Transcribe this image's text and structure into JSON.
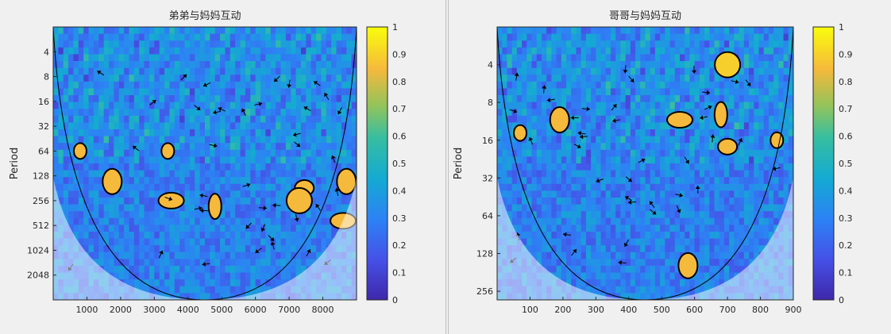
{
  "chart_data": [
    {
      "type": "heatmap",
      "title": "弟弟与妈妈互动",
      "ylabel": "Period",
      "xlabel": "",
      "xlim": [
        0,
        9000
      ],
      "x_ticks": [
        1000,
        2000,
        3000,
        4000,
        5000,
        6000,
        7000,
        8000
      ],
      "y_scale": "log2",
      "ylim": [
        2,
        4096
      ],
      "y_ticks": [
        4,
        8,
        16,
        32,
        64,
        128,
        256,
        512,
        1024,
        2048
      ],
      "colorbar": {
        "range": [
          0,
          1
        ],
        "ticks": [
          0,
          0.1,
          0.2,
          0.3,
          0.4,
          0.5,
          0.6,
          0.7,
          0.8,
          0.9,
          1
        ]
      },
      "cone_of_influence": true,
      "significant_regions": [
        {
          "x": 800,
          "period": 64,
          "value": 0.85
        },
        {
          "x": 1750,
          "period": 150,
          "value": 0.85
        },
        {
          "x": 3500,
          "period": 256,
          "value": 0.85
        },
        {
          "x": 4800,
          "period": 300,
          "value": 0.85
        },
        {
          "x": 7450,
          "period": 180,
          "value": 0.85
        },
        {
          "x": 7300,
          "period": 256,
          "value": 0.85
        },
        {
          "x": 3400,
          "period": 64,
          "value": 0.85
        },
        {
          "x": 8700,
          "period": 150,
          "value": 0.85
        },
        {
          "x": 8600,
          "period": 450,
          "value": 0.85
        }
      ]
    },
    {
      "type": "heatmap",
      "title": "哥哥与妈妈互动",
      "ylabel": "Period",
      "xlabel": "",
      "xlim": [
        0,
        900
      ],
      "x_ticks": [
        100,
        200,
        300,
        400,
        500,
        600,
        700,
        800,
        900
      ],
      "y_scale": "log2",
      "ylim": [
        2,
        300
      ],
      "y_ticks": [
        4,
        8,
        16,
        32,
        64,
        128,
        256
      ],
      "colorbar": {
        "range": [
          0,
          1
        ],
        "ticks": [
          0,
          0.1,
          0.2,
          0.3,
          0.4,
          0.5,
          0.6,
          0.7,
          0.8,
          0.9,
          1
        ]
      },
      "cone_of_influence": true,
      "significant_regions": [
        {
          "x": 70,
          "period": 14,
          "value": 0.85
        },
        {
          "x": 190,
          "period": 11,
          "value": 0.85
        },
        {
          "x": 555,
          "period": 11,
          "value": 0.85
        },
        {
          "x": 680,
          "period": 10,
          "value": 0.85
        },
        {
          "x": 700,
          "period": 18,
          "value": 0.85
        },
        {
          "x": 700,
          "period": 4,
          "value": 0.9
        },
        {
          "x": 850,
          "period": 16,
          "value": 0.85
        },
        {
          "x": 580,
          "period": 160,
          "value": 0.85
        }
      ]
    }
  ]
}
